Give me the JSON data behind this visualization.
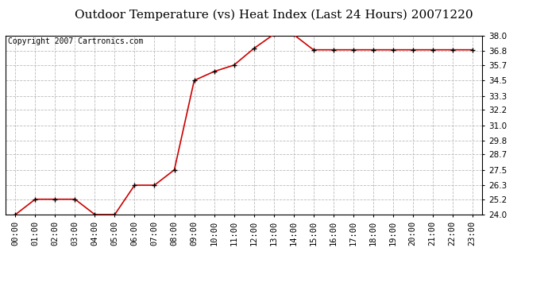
{
  "title": "Outdoor Temperature (vs) Heat Index (Last 24 Hours) 20071220",
  "copyright": "Copyright 2007 Cartronics.com",
  "line_color": "#CC0000",
  "marker_color": "#000000",
  "background_color": "#ffffff",
  "grid_color": "#bbbbbb",
  "hours": [
    0,
    1,
    2,
    3,
    4,
    5,
    6,
    7,
    8,
    9,
    10,
    11,
    12,
    13,
    14,
    15,
    16,
    17,
    18,
    19,
    20,
    21,
    22,
    23
  ],
  "x_labels": [
    "00:00",
    "01:00",
    "02:00",
    "03:00",
    "04:00",
    "05:00",
    "06:00",
    "07:00",
    "08:00",
    "09:00",
    "10:00",
    "11:00",
    "12:00",
    "13:00",
    "14:00",
    "15:00",
    "16:00",
    "17:00",
    "18:00",
    "19:00",
    "20:00",
    "21:00",
    "22:00",
    "23:00"
  ],
  "temperatures": [
    24.0,
    25.2,
    25.2,
    25.2,
    24.0,
    24.0,
    26.3,
    26.3,
    27.5,
    34.5,
    35.2,
    35.7,
    37.0,
    38.1,
    38.1,
    36.9,
    36.9,
    36.9,
    36.9,
    36.9,
    36.9,
    36.9,
    36.9,
    36.9
  ],
  "ylim": [
    24.0,
    38.0
  ],
  "yticks": [
    24.0,
    25.2,
    26.3,
    27.5,
    28.7,
    29.8,
    31.0,
    32.2,
    33.3,
    34.5,
    35.7,
    36.8,
    38.0
  ],
  "title_fontsize": 11,
  "copyright_fontsize": 7,
  "tick_fontsize": 7.5,
  "border_color": "#000000"
}
